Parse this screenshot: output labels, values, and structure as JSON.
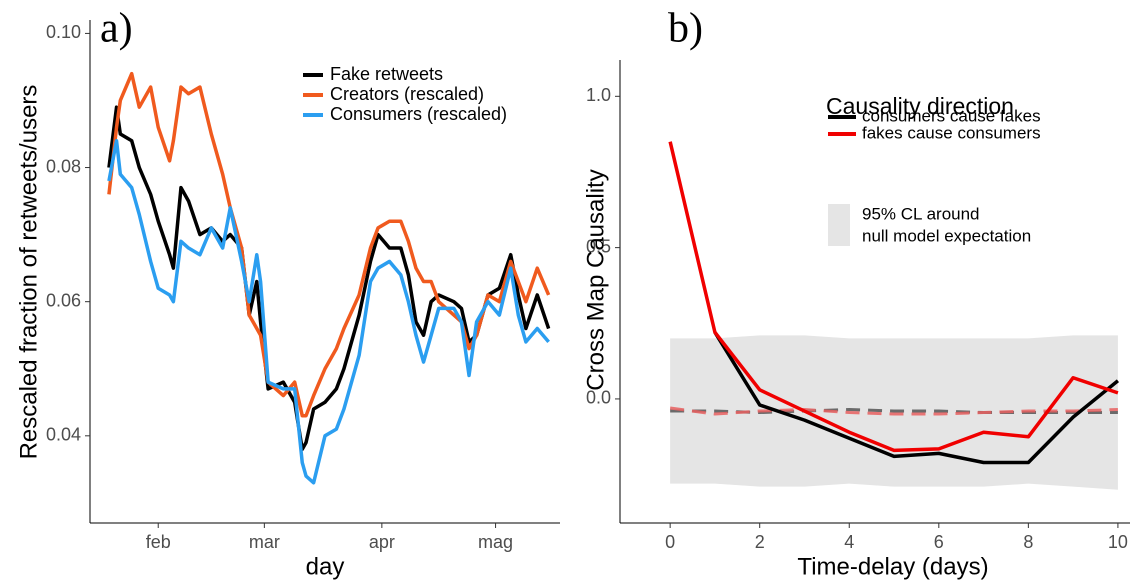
{
  "chart_data": [
    {
      "type": "line",
      "panel_label": "a)",
      "xlabel": "day",
      "ylabel": "Rescaled fraction of retweets/users",
      "x": [
        -13,
        -11,
        -10,
        -7,
        -5,
        -2,
        0,
        3,
        4,
        6,
        8,
        11,
        14,
        17,
        19,
        22,
        24,
        26,
        27,
        29,
        33,
        36,
        38,
        39,
        41,
        44,
        47,
        49,
        53,
        56,
        58,
        61,
        64,
        66,
        68,
        70,
        72,
        74,
        78,
        80,
        82,
        84,
        87,
        90,
        93,
        95,
        97,
        100,
        103
      ],
      "xlim": [
        -18,
        106
      ],
      "xticks": [
        {
          "value": 0,
          "label": "feb"
        },
        {
          "value": 28,
          "label": "mar"
        },
        {
          "value": 59,
          "label": "apr"
        },
        {
          "value": 89,
          "label": "mag"
        }
      ],
      "ylim": [
        0.027,
        0.102
      ],
      "yticks": [
        0.04,
        0.06,
        0.08,
        {
          "value": 0.1,
          "label": "0.10"
        }
      ],
      "grid": false,
      "series": [
        {
          "name": "Fake retweets",
          "color": "#000000",
          "values": [
            0.08,
            0.089,
            0.085,
            0.084,
            0.08,
            0.076,
            0.072,
            0.067,
            0.065,
            0.077,
            0.075,
            0.07,
            0.071,
            0.069,
            0.07,
            0.068,
            0.058,
            0.063,
            0.057,
            0.047,
            0.048,
            0.045,
            0.038,
            0.039,
            0.044,
            0.045,
            0.047,
            0.05,
            0.058,
            0.066,
            0.07,
            0.068,
            0.068,
            0.064,
            0.057,
            0.055,
            0.06,
            0.061,
            0.06,
            0.059,
            0.054,
            0.055,
            0.061,
            0.062,
            0.067,
            0.061,
            0.056,
            0.061,
            0.056
          ]
        },
        {
          "name": "Creators (rescaled)",
          "color": "#f05a1e",
          "values": [
            0.076,
            0.086,
            0.09,
            0.094,
            0.089,
            0.092,
            0.086,
            0.081,
            0.084,
            0.092,
            0.091,
            0.092,
            0.085,
            0.079,
            0.074,
            0.068,
            0.058,
            0.056,
            0.055,
            0.048,
            0.046,
            0.048,
            0.043,
            0.043,
            0.046,
            0.05,
            0.053,
            0.056,
            0.061,
            0.068,
            0.071,
            0.072,
            0.072,
            0.069,
            0.065,
            0.063,
            0.063,
            0.06,
            0.058,
            0.057,
            0.053,
            0.055,
            0.061,
            0.06,
            0.066,
            0.063,
            0.06,
            0.065,
            0.061
          ]
        },
        {
          "name": "Consumers (rescaled)",
          "color": "#2b9ef0",
          "values": [
            0.078,
            0.084,
            0.079,
            0.077,
            0.073,
            0.066,
            0.062,
            0.061,
            0.06,
            0.069,
            0.068,
            0.067,
            0.071,
            0.068,
            0.074,
            0.066,
            0.06,
            0.067,
            0.063,
            0.048,
            0.047,
            0.047,
            0.036,
            0.034,
            0.033,
            0.04,
            0.041,
            0.044,
            0.052,
            0.063,
            0.065,
            0.066,
            0.064,
            0.06,
            0.055,
            0.051,
            0.055,
            0.059,
            0.059,
            0.057,
            0.049,
            0.057,
            0.06,
            0.058,
            0.065,
            0.058,
            0.054,
            0.056,
            0.054
          ]
        }
      ]
    },
    {
      "type": "line",
      "panel_label": "b)",
      "xlabel": "Time-delay (days)",
      "ylabel": "Cross Map Causality",
      "legend_title": "Causality direction",
      "x": [
        0,
        1,
        2,
        3,
        4,
        5,
        6,
        7,
        8,
        9,
        10
      ],
      "xlim": [
        -1.12,
        10.27
      ],
      "xticks": [
        0,
        2,
        4,
        6,
        8,
        10
      ],
      "ylim": [
        -0.41,
        1.12
      ],
      "yticks": [
        {
          "value": 0,
          "label": "0.0"
        },
        0.5,
        {
          "value": 1,
          "label": "1.0"
        }
      ],
      "grid": false,
      "band": {
        "label": [
          "95% CL around",
          "null model expectation"
        ],
        "color": "#e5e5e5",
        "upper": [
          0.2,
          0.2,
          0.21,
          0.21,
          0.2,
          0.2,
          0.2,
          0.2,
          0.2,
          0.21,
          0.21
        ],
        "lower": [
          -0.28,
          -0.28,
          -0.29,
          -0.29,
          -0.28,
          -0.29,
          -0.29,
          -0.29,
          -0.28,
          -0.29,
          -0.3
        ]
      },
      "null_model": [
        {
          "color": "#555555",
          "values": [
            -0.04,
            -0.04,
            -0.045,
            -0.04,
            -0.035,
            -0.04,
            -0.04,
            -0.045,
            -0.045,
            -0.045,
            -0.045
          ]
        },
        {
          "color": "#e86060",
          "values": [
            -0.03,
            -0.05,
            -0.04,
            -0.035,
            -0.045,
            -0.05,
            -0.05,
            -0.045,
            -0.04,
            -0.04,
            -0.035
          ]
        }
      ],
      "series": [
        {
          "name": "consumers cause fakes",
          "color": "#000000",
          "values": [
            null,
            0.22,
            -0.02,
            -0.07,
            -0.13,
            -0.19,
            -0.18,
            -0.21,
            -0.21,
            -0.06,
            0.06
          ]
        },
        {
          "name": "fakes cause consumers",
          "color": "#f00000",
          "values": [
            0.85,
            0.22,
            0.03,
            -0.04,
            -0.11,
            -0.17,
            -0.165,
            -0.11,
            -0.125,
            0.07,
            0.02
          ]
        }
      ]
    }
  ]
}
